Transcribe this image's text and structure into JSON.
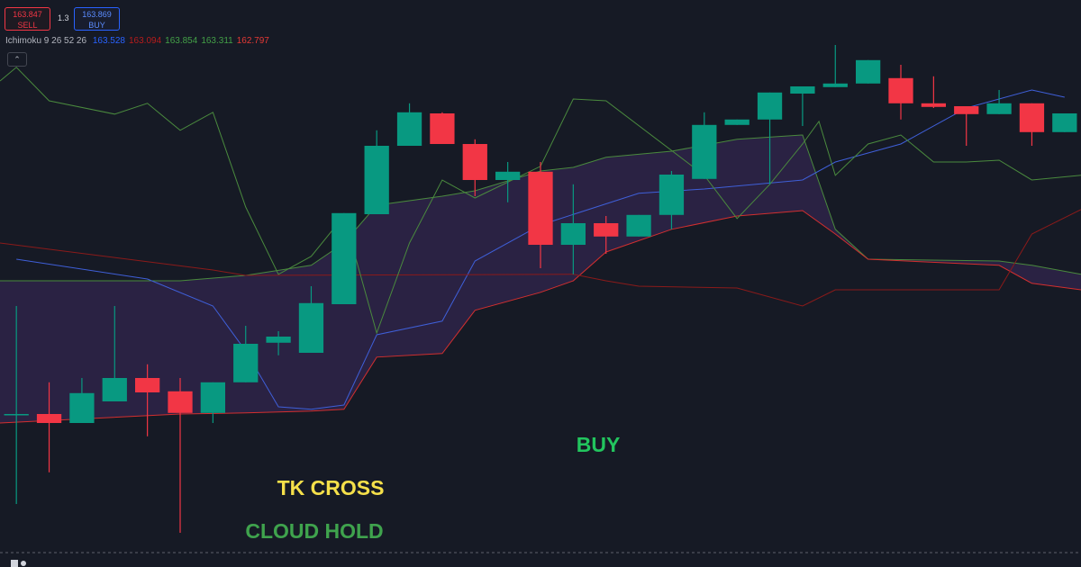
{
  "header": {
    "sell_price": 163.847,
    "sell_label": "SELL",
    "spread": 1.3,
    "buy_price": 163.869,
    "buy_label": "BUY",
    "indicator_name": "Ichimoku 9 26 52 26",
    "indicator_values": [
      {
        "value": 163.528,
        "color": "#2962ff"
      },
      {
        "value": 163.094,
        "color": "#b71c1c"
      },
      {
        "value": 163.854,
        "color": "#43a047"
      },
      {
        "value": 163.311,
        "color": "#43a047"
      },
      {
        "value": 162.797,
        "color": "#e53935"
      }
    ]
  },
  "chart_data": {
    "type": "candlestick",
    "ylim": [
      162.255,
      163.83
    ],
    "xlim": [
      -0.5,
      32.5
    ],
    "up_color": "#089981",
    "down_color": "#f23645",
    "x": [
      0,
      1,
      2,
      3,
      4,
      5,
      6,
      7,
      8,
      9,
      10,
      11,
      12,
      13,
      14,
      15,
      16,
      17,
      18,
      19,
      20,
      21,
      22,
      23,
      24,
      25,
      26,
      27,
      28,
      29,
      30,
      31,
      32
    ],
    "open": [
      162.678,
      162.68,
      162.655,
      162.715,
      162.78,
      162.743,
      162.683,
      162.768,
      162.878,
      162.85,
      162.985,
      163.235,
      163.425,
      163.515,
      163.43,
      163.33,
      163.353,
      163.15,
      163.21,
      163.173,
      163.233,
      163.333,
      163.483,
      163.498,
      163.57,
      163.588,
      163.598,
      163.613,
      163.543,
      163.535,
      163.513,
      163.543,
      163.463
    ],
    "high": [
      162.98,
      162.768,
      162.78,
      162.98,
      162.818,
      162.78,
      162.768,
      162.925,
      162.91,
      163.035,
      163.238,
      163.468,
      163.543,
      163.518,
      163.443,
      163.38,
      163.38,
      163.318,
      163.23,
      163.233,
      163.355,
      163.518,
      163.498,
      163.573,
      163.59,
      163.705,
      163.663,
      163.65,
      163.618,
      163.535,
      163.58,
      163.543,
      163.515
    ],
    "low": [
      162.43,
      162.518,
      162.655,
      162.715,
      162.618,
      162.35,
      162.655,
      162.768,
      162.843,
      162.85,
      162.985,
      163.235,
      163.425,
      163.43,
      163.285,
      163.268,
      163.085,
      163.068,
      163.125,
      163.173,
      163.193,
      163.333,
      163.483,
      163.318,
      163.48,
      163.588,
      163.598,
      163.498,
      163.53,
      163.425,
      163.513,
      163.425,
      163.463
    ],
    "close": [
      162.68,
      162.655,
      162.738,
      162.78,
      162.74,
      162.683,
      162.768,
      162.875,
      162.895,
      162.988,
      163.238,
      163.425,
      163.518,
      163.43,
      163.33,
      163.353,
      163.15,
      163.21,
      163.173,
      163.233,
      163.345,
      163.483,
      163.498,
      163.573,
      163.59,
      163.598,
      163.663,
      163.543,
      163.533,
      163.513,
      163.543,
      163.463,
      163.515
    ],
    "cloud": {
      "fill": "#3d2a5c",
      "opacity": 0.55,
      "x": [
        -0.5,
        5,
        7,
        9,
        10,
        11,
        13,
        14,
        16,
        17,
        18,
        20,
        22,
        24,
        25,
        26,
        30,
        31,
        32.5
      ],
      "span_a": {
        "color": "#4a8a3e",
        "values": [
          163.05,
          163.05,
          163.065,
          163.093,
          163.155,
          163.26,
          163.285,
          163.3,
          163.355,
          163.365,
          163.393,
          163.41,
          163.443,
          163.455,
          163.193,
          163.11,
          163.105,
          163.093,
          163.068
        ]
      },
      "span_b": {
        "color": "#d32f2f",
        "values": [
          162.655,
          162.68,
          162.683,
          162.688,
          162.693,
          162.838,
          162.848,
          162.968,
          163.018,
          163.05,
          163.13,
          163.193,
          163.23,
          163.245,
          163.18,
          163.11,
          163.093,
          163.043,
          163.025
        ]
      }
    },
    "lines": [
      {
        "color": "#3f5fd8",
        "x": [
          0,
          4,
          6,
          7,
          8,
          9,
          10,
          11,
          13,
          14,
          16,
          19,
          21,
          24,
          25,
          27,
          29,
          31,
          32
        ],
        "values": [
          163.11,
          163.055,
          162.98,
          162.855,
          162.7,
          162.693,
          162.705,
          162.9,
          162.938,
          163.105,
          163.205,
          163.293,
          163.305,
          163.33,
          163.38,
          163.43,
          163.53,
          163.58,
          163.56
        ]
      },
      {
        "color": "#8b1a1a",
        "x": [
          -0.5,
          6,
          7,
          17,
          18,
          19,
          22,
          24,
          25,
          30,
          31,
          32.5
        ],
        "values": [
          163.155,
          163.08,
          163.065,
          163.068,
          163.05,
          163.035,
          163.03,
          162.98,
          163.025,
          163.025,
          163.18,
          163.248
        ]
      },
      {
        "color": "#4a8a3e",
        "x": [
          -0.5,
          0,
          1,
          3,
          4,
          5,
          6,
          7,
          8,
          9,
          10,
          11,
          12,
          13,
          14,
          16,
          17,
          18,
          21,
          22,
          23,
          24,
          24.5,
          25,
          26,
          27,
          28,
          29,
          30,
          31,
          32.5
        ],
        "values": [
          163.605,
          163.643,
          163.55,
          163.513,
          163.543,
          163.468,
          163.518,
          163.255,
          163.068,
          163.118,
          163.23,
          162.905,
          163.155,
          163.33,
          163.28,
          163.368,
          163.555,
          163.55,
          163.343,
          163.223,
          163.318,
          163.43,
          163.493,
          163.343,
          163.43,
          163.455,
          163.38,
          163.38,
          163.385,
          163.33,
          163.343
        ]
      }
    ],
    "annotations": [
      {
        "text": "BUY",
        "color": "#22c55e"
      },
      {
        "text": "TK CROSS",
        "color": "#f5e04a"
      },
      {
        "text": "CLOUD HOLD",
        "color": "#3fa34d"
      }
    ]
  }
}
